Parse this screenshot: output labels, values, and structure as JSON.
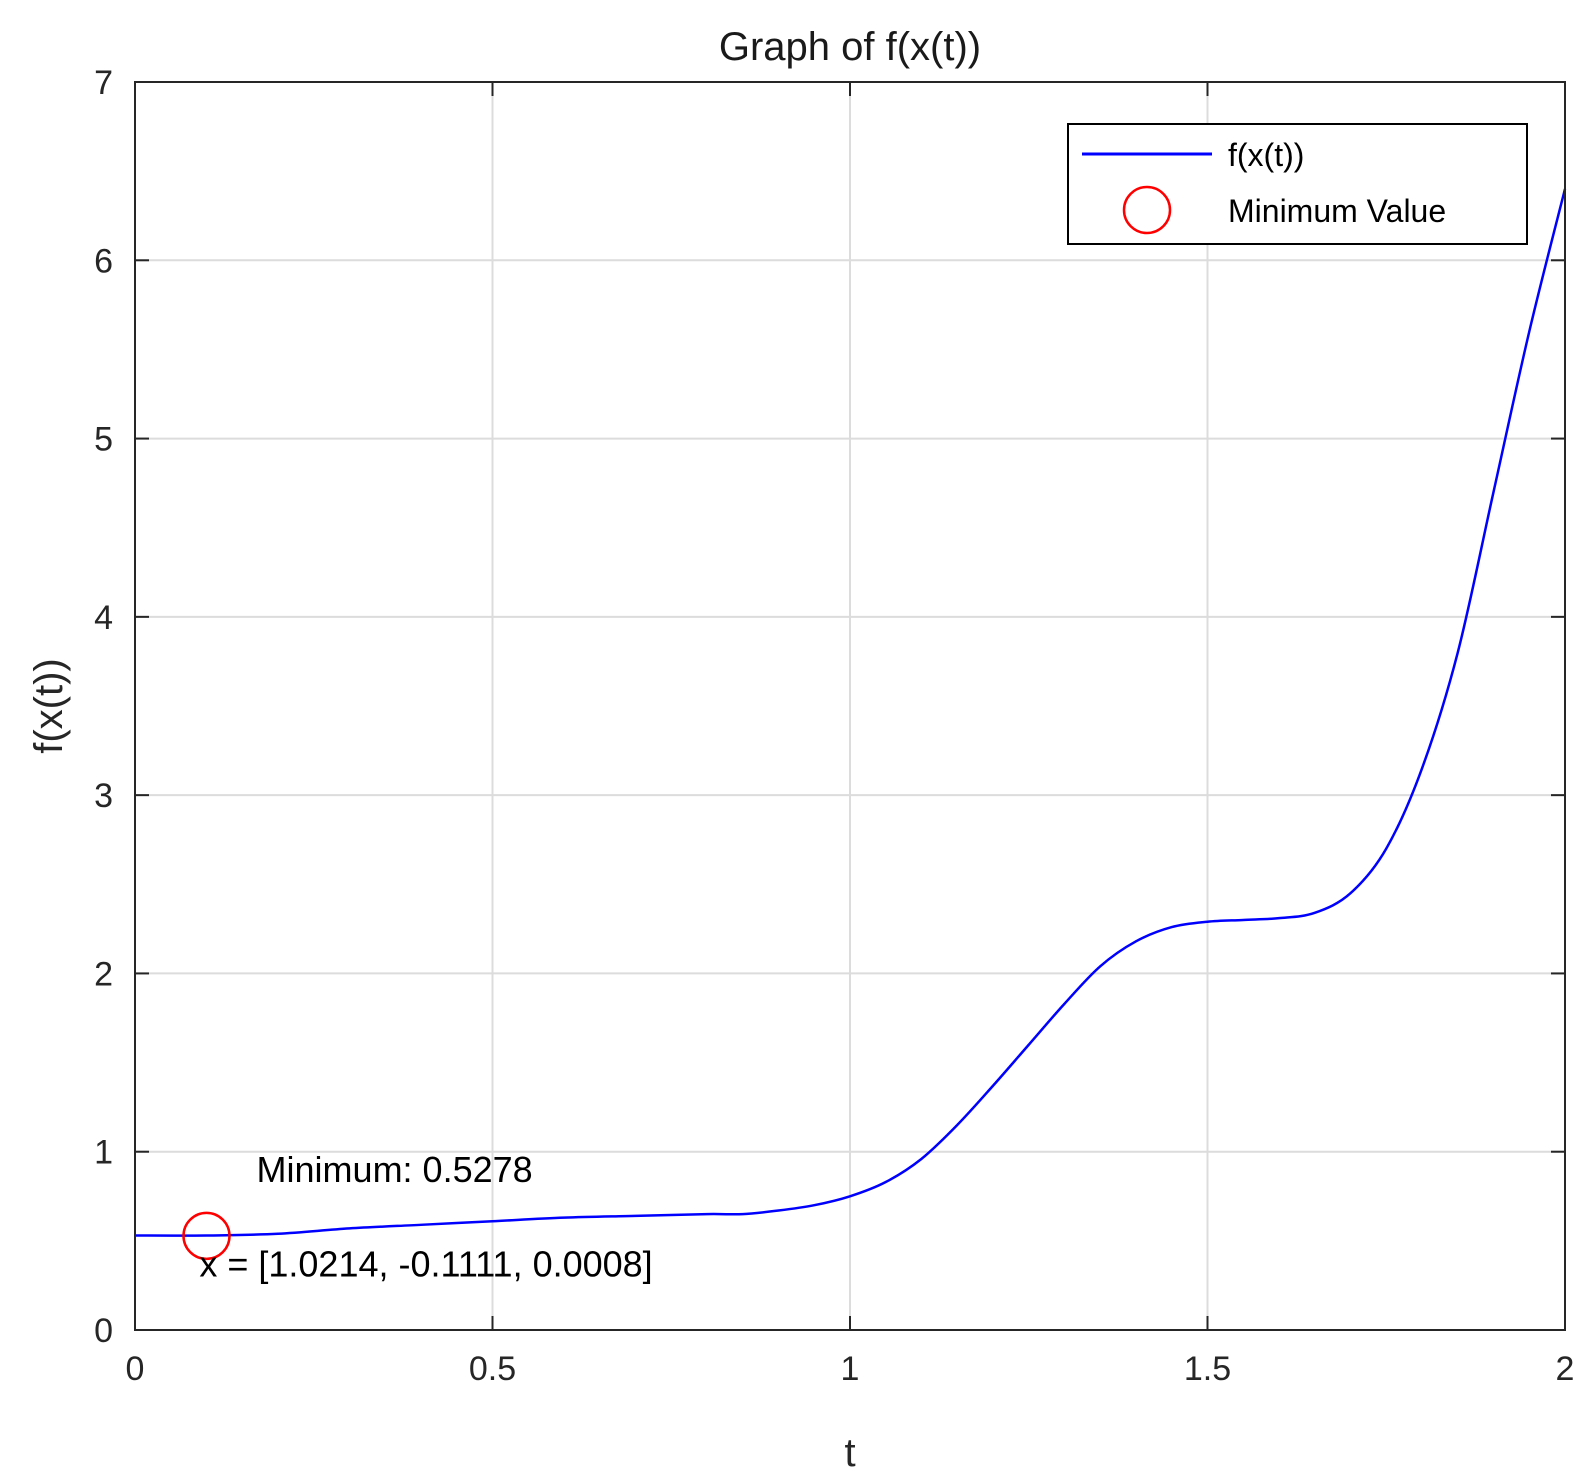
{
  "chart_data": {
    "type": "line",
    "title": "Graph of f(x(t))",
    "xlabel": "t",
    "ylabel": "f(x(t))",
    "xlim": [
      0,
      2
    ],
    "ylim": [
      0,
      7
    ],
    "x_ticks": [
      0,
      0.5,
      1,
      1.5,
      2
    ],
    "y_ticks": [
      0,
      1,
      2,
      3,
      4,
      5,
      6,
      7
    ],
    "x_tick_labels": [
      "0",
      "0.5",
      "1",
      "1.5",
      "2"
    ],
    "y_tick_labels": [
      "0",
      "1",
      "2",
      "3",
      "4",
      "5",
      "6",
      "7"
    ],
    "grid": true,
    "legend_position": "top-right",
    "series": [
      {
        "name": "f(x(t))",
        "color": "#0000ff",
        "x": [
          0,
          0.1,
          0.2,
          0.3,
          0.4,
          0.5,
          0.6,
          0.7,
          0.8,
          0.85,
          0.9,
          0.95,
          1.0,
          1.05,
          1.1,
          1.15,
          1.2,
          1.25,
          1.3,
          1.35,
          1.4,
          1.45,
          1.5,
          1.55,
          1.6,
          1.65,
          1.7,
          1.75,
          1.8,
          1.85,
          1.9,
          1.95,
          2.0
        ],
        "y": [
          0.53,
          0.53,
          0.54,
          0.57,
          0.59,
          0.61,
          0.63,
          0.64,
          0.65,
          0.65,
          0.67,
          0.7,
          0.75,
          0.83,
          0.96,
          1.15,
          1.37,
          1.6,
          1.83,
          2.04,
          2.18,
          2.26,
          2.29,
          2.3,
          2.31,
          2.34,
          2.45,
          2.7,
          3.15,
          3.8,
          4.7,
          5.6,
          6.4
        ]
      }
    ],
    "marker": {
      "name": "Minimum Value",
      "color": "#ff0000",
      "x": 0.1,
      "y": 0.5278
    },
    "annotations": [
      {
        "text": "Minimum: 0.5278",
        "x": 0.17,
        "y": 0.83
      },
      {
        "text": "x = [1.0214, -0.1111, 0.0008]",
        "x": 0.09,
        "y": 0.3
      }
    ]
  }
}
